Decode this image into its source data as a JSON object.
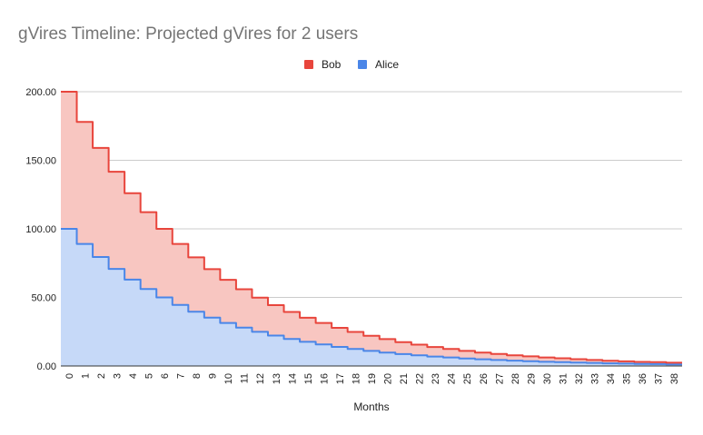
{
  "chart_data": {
    "type": "area",
    "stacked": true,
    "stepped": true,
    "title": "gVires Timeline: Projected gVires for 2 users",
    "xlabel": "Months",
    "ylabel": "",
    "ylim": [
      0,
      200
    ],
    "yticks": [
      "0.00",
      "50.00",
      "100.00",
      "150.00",
      "200.00"
    ],
    "ytick_values": [
      0,
      50,
      100,
      150,
      200
    ],
    "legend_position": "top",
    "grid": true,
    "x": [
      0,
      1,
      2,
      3,
      4,
      5,
      6,
      7,
      8,
      9,
      10,
      11,
      12,
      13,
      14,
      15,
      16,
      17,
      18,
      19,
      20,
      21,
      22,
      23,
      24,
      25,
      26,
      27,
      28,
      29,
      30,
      31,
      32,
      33,
      34,
      35,
      36,
      37,
      38
    ],
    "xtick_labels": [
      "0",
      "1",
      "2",
      "3",
      "4",
      "5",
      "6",
      "7",
      "8",
      "9",
      "10",
      "11",
      "12",
      "13",
      "14",
      "15",
      "16",
      "17",
      "18",
      "19",
      "20",
      "21",
      "22",
      "23",
      "24",
      "25",
      "26",
      "27",
      "28",
      "29",
      "30",
      "31",
      "32",
      "33",
      "34",
      "35",
      "36",
      "37",
      "38"
    ],
    "series": [
      {
        "name": "Bob",
        "line_color": "#e8453c",
        "fill_color": "#f8c6c1",
        "values": [
          100,
          89,
          79.5,
          70.8,
          63,
          56.1,
          50,
          44.5,
          39.6,
          35.3,
          31.4,
          28,
          24.9,
          22.2,
          19.7,
          17.6,
          15.7,
          13.9,
          12.4,
          11,
          9.8,
          8.7,
          7.8,
          6.9,
          6.2,
          5.5,
          4.9,
          4.4,
          3.9,
          3.5,
          3.1,
          2.8,
          2.5,
          2.2,
          1.9,
          1.7,
          1.5,
          1.4,
          1.2
        ]
      },
      {
        "name": "Alice",
        "line_color": "#4a86e8",
        "fill_color": "#c6d9f8",
        "values": [
          100,
          89,
          79.5,
          70.8,
          63,
          56.1,
          50,
          44.5,
          39.6,
          35.3,
          31.4,
          28,
          24.9,
          22.2,
          19.7,
          17.6,
          15.7,
          13.9,
          12.4,
          11,
          9.8,
          8.7,
          7.8,
          6.9,
          6.2,
          5.5,
          4.9,
          4.4,
          3.9,
          3.5,
          3.1,
          2.8,
          2.5,
          2.2,
          1.9,
          1.7,
          1.5,
          1.4,
          1.2
        ]
      }
    ]
  }
}
